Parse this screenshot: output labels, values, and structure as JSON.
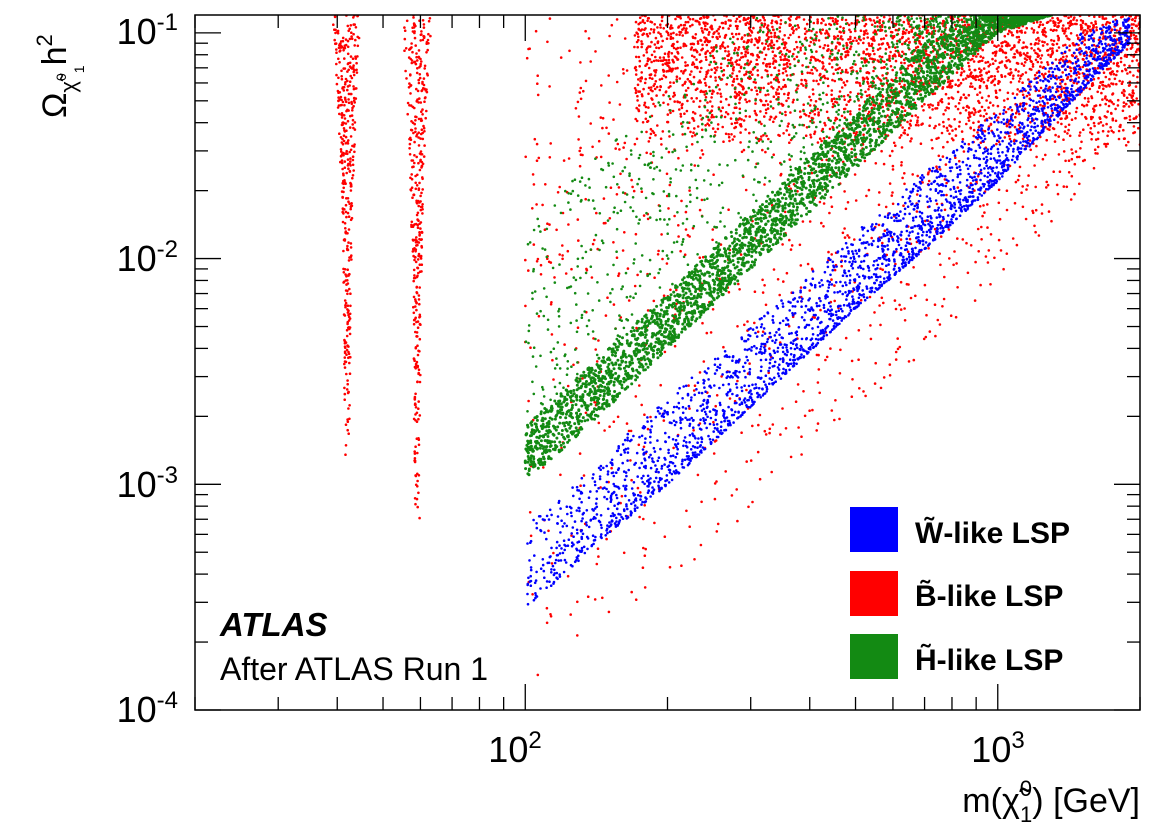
{
  "chart_data": {
    "type": "scatter",
    "x_scale": "log",
    "y_scale": "log",
    "xlim": [
      20,
      2000
    ],
    "ylim": [
      0.0001,
      0.12
    ],
    "xlabel": {
      "base": "m(",
      "chi": "χ̃",
      "sup": "0",
      "sub": "1",
      "tail": ") [GeV]"
    },
    "ylabel": {
      "base": "Ω",
      "sub": "χ̃",
      "subsub": "1",
      "subsup": "0",
      "tail": "h",
      "sup": "2"
    },
    "x_tick_labels": [
      {
        "value": 100,
        "base": "10",
        "exp": "2"
      },
      {
        "value": 1000,
        "base": "10",
        "exp": "3"
      }
    ],
    "y_tick_labels": [
      {
        "value": 0.1,
        "base": "10",
        "exp": "-1"
      },
      {
        "value": 0.01,
        "base": "10",
        "exp": "-2"
      },
      {
        "value": 0.001,
        "base": "10",
        "exp": "-3"
      },
      {
        "value": 0.0001,
        "base": "10",
        "exp": "-4"
      }
    ],
    "legend_position": "bottom-right",
    "series": [
      {
        "name": "W̃-like LSP",
        "color": "#0000ff",
        "x": [
          100,
          150,
          200,
          300,
          500,
          700,
          1000,
          1500,
          1900
        ],
        "y_low": [
          0.00028,
          0.0006,
          0.001,
          0.0022,
          0.006,
          0.011,
          0.022,
          0.055,
          0.09
        ],
        "y_high": [
          0.00065,
          0.0014,
          0.0024,
          0.005,
          0.013,
          0.024,
          0.045,
          0.1,
          0.12
        ]
      },
      {
        "name": "B̃-like LSP",
        "color": "#ff0000",
        "x_funnels": [
          42,
          59
        ],
        "funnel_ymin": [
          0.0011,
          0.0006
        ],
        "bulk_x_range": [
          170,
          2000
        ],
        "bulk_y_range": [
          0.03,
          0.12
        ],
        "scattered_x_range": [
          100,
          2000
        ],
        "scattered_y_range": [
          0.0001,
          0.12
        ]
      },
      {
        "name": "H̃-like LSP",
        "color": "#138a13",
        "x": [
          100,
          150,
          200,
          300,
          500,
          700,
          1000,
          1300
        ],
        "y_band_low": [
          0.001,
          0.0022,
          0.004,
          0.009,
          0.025,
          0.05,
          0.1,
          0.12
        ],
        "y_band_high": [
          0.0018,
          0.004,
          0.007,
          0.016,
          0.045,
          0.09,
          0.12,
          0.12
        ],
        "scattered_y_range": [
          0.001,
          0.12
        ]
      }
    ],
    "annotations": {
      "experiment": "ATLAS",
      "subtitle": "After ATLAS Run 1"
    }
  }
}
